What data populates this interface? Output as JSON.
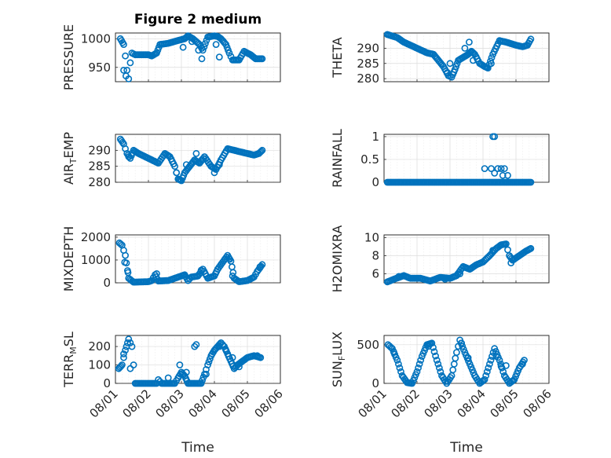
{
  "figure": {
    "title": "Figure 2 medium",
    "xlabel": "Time"
  },
  "colors": {
    "marker": "#0072BD",
    "axis": "#262626",
    "grid": "#dcdcdc"
  },
  "x_ticks": [
    "08/01",
    "08/02",
    "08/03",
    "08/04",
    "08/05",
    "08/06"
  ],
  "chart_data": [
    {
      "type": "scatter",
      "panel": "PRESSURE",
      "ylabel": "PRESSURE",
      "ylim": [
        925,
        1010
      ],
      "yticks": [
        "950",
        "1000"
      ],
      "yvals": [
        950,
        1000
      ],
      "segments": [
        [
          0.15,
          1000
        ],
        [
          0.25,
          990
        ],
        [
          0.3,
          970
        ],
        [
          0.35,
          945
        ],
        [
          0.4,
          930
        ],
        [
          0.45,
          958
        ],
        [
          0.5,
          975
        ],
        [
          0.6,
          972
        ],
        [
          1.0,
          972
        ],
        [
          1.1,
          970
        ],
        [
          1.25,
          975
        ],
        [
          1.35,
          990
        ],
        [
          1.6,
          992
        ],
        [
          1.9,
          997
        ],
        [
          2.1,
          1000
        ],
        [
          2.2,
          1005
        ],
        [
          2.35,
          1000
        ],
        [
          2.55,
          990
        ],
        [
          2.65,
          980
        ],
        [
          2.8,
          1003
        ],
        [
          3.0,
          1005
        ],
        [
          3.1,
          1004
        ],
        [
          3.2,
          1000
        ],
        [
          3.35,
          990
        ],
        [
          3.45,
          975
        ],
        [
          3.55,
          963
        ],
        [
          3.75,
          963
        ],
        [
          3.9,
          978
        ],
        [
          4.1,
          972
        ],
        [
          4.25,
          965
        ],
        [
          4.45,
          965
        ]
      ],
      "points": [
        [
          0.25,
          945
        ],
        [
          0.32,
          935
        ],
        [
          2.05,
          985
        ],
        [
          2.32,
          995
        ],
        [
          2.52,
          980
        ],
        [
          2.62,
          965
        ],
        [
          3.05,
          990
        ],
        [
          3.15,
          968
        ]
      ]
    },
    {
      "type": "scatter",
      "panel": "THETA",
      "ylabel": "THETA",
      "ylim": [
        279,
        295
      ],
      "yticks": [
        "280",
        "285",
        "290"
      ],
      "yvals": [
        280,
        285,
        290
      ],
      "segments": [
        [
          0.1,
          294.5
        ],
        [
          0.4,
          293.5
        ],
        [
          0.6,
          292
        ],
        [
          1.0,
          290
        ],
        [
          1.3,
          288.5
        ],
        [
          1.5,
          288
        ],
        [
          1.65,
          286
        ],
        [
          1.8,
          284
        ],
        [
          1.95,
          281
        ],
        [
          2.05,
          280.5
        ],
        [
          2.15,
          283
        ],
        [
          2.25,
          286
        ],
        [
          2.4,
          287
        ],
        [
          2.55,
          288
        ],
        [
          2.65,
          289
        ],
        [
          2.75,
          288
        ],
        [
          2.9,
          285
        ],
        [
          3.05,
          284
        ],
        [
          3.15,
          283.5
        ],
        [
          3.3,
          288
        ],
        [
          3.5,
          292.5
        ],
        [
          3.7,
          292
        ],
        [
          4.0,
          291
        ],
        [
          4.2,
          290.5
        ],
        [
          4.35,
          291
        ],
        [
          4.45,
          293
        ]
      ],
      "points": [
        [
          1.92,
          282
        ],
        [
          2.0,
          285
        ],
        [
          2.45,
          290
        ],
        [
          2.58,
          292
        ],
        [
          2.7,
          286
        ],
        [
          3.25,
          285
        ]
      ]
    },
    {
      "type": "scatter",
      "panel": "AIR_TEMP",
      "ylabel": "AIR",
      "ylabel_sub": "T",
      "ylabel_tail": "EMP",
      "ylim": [
        280,
        295
      ],
      "yticks": [
        "280",
        "285",
        "290"
      ],
      "yvals": [
        280,
        285,
        290
      ],
      "segments": [
        [
          0.15,
          293.5
        ],
        [
          0.25,
          292
        ],
        [
          0.35,
          289
        ],
        [
          0.45,
          287.5
        ],
        [
          0.55,
          290
        ],
        [
          0.7,
          289
        ],
        [
          1.0,
          287.5
        ],
        [
          1.3,
          286
        ],
        [
          1.5,
          289
        ],
        [
          1.65,
          288
        ],
        [
          1.8,
          285
        ],
        [
          1.9,
          281
        ],
        [
          2.0,
          280.5
        ],
        [
          2.1,
          283
        ],
        [
          2.25,
          285
        ],
        [
          2.4,
          287
        ],
        [
          2.55,
          286
        ],
        [
          2.7,
          288
        ],
        [
          2.9,
          285
        ],
        [
          3.05,
          284
        ],
        [
          3.2,
          287
        ],
        [
          3.4,
          290.5
        ],
        [
          3.6,
          290
        ],
        [
          3.8,
          289.5
        ],
        [
          4.0,
          289
        ],
        [
          4.2,
          288.5
        ],
        [
          4.35,
          289
        ],
        [
          4.45,
          290
        ]
      ],
      "points": [
        [
          0.4,
          288
        ],
        [
          1.85,
          283
        ],
        [
          2.15,
          285.5
        ],
        [
          2.45,
          289
        ],
        [
          2.62,
          287
        ],
        [
          3.0,
          283
        ],
        [
          3.15,
          285.5
        ]
      ]
    },
    {
      "type": "scatter",
      "panel": "RAINFALL",
      "ylabel": "RAINFALL",
      "ylim": [
        0,
        1.05
      ],
      "yticks": [
        "0",
        "0.5",
        "1"
      ],
      "yvals": [
        0,
        0.5,
        1
      ],
      "segments": [
        [
          0.1,
          0
        ],
        [
          4.45,
          0
        ]
      ],
      "points": [
        [
          3.05,
          0.3
        ],
        [
          3.25,
          0.3
        ],
        [
          3.3,
          1
        ],
        [
          3.35,
          1
        ],
        [
          3.45,
          0.3
        ],
        [
          3.55,
          0.3
        ],
        [
          3.65,
          0.3
        ],
        [
          3.75,
          0.15
        ],
        [
          3.35,
          0.2
        ],
        [
          3.6,
          0.15
        ]
      ]
    },
    {
      "type": "scatter",
      "panel": "MIXDEPTH",
      "ylabel": "MIXDEPTH",
      "ylim": [
        0,
        2100
      ],
      "yticks": [
        "0",
        "1000",
        "2000"
      ],
      "yvals": [
        0,
        1000,
        2000
      ],
      "segments": [
        [
          0.12,
          1750
        ],
        [
          0.2,
          1650
        ],
        [
          0.3,
          1200
        ],
        [
          0.4,
          200
        ],
        [
          0.55,
          30
        ],
        [
          1.0,
          50
        ],
        [
          1.1,
          100
        ],
        [
          1.2,
          350
        ],
        [
          1.3,
          80
        ],
        [
          1.6,
          100
        ],
        [
          1.8,
          200
        ],
        [
          2.0,
          300
        ],
        [
          2.1,
          350
        ],
        [
          2.2,
          100
        ],
        [
          2.3,
          250
        ],
        [
          2.5,
          300
        ],
        [
          2.65,
          600
        ],
        [
          2.8,
          200
        ],
        [
          3.0,
          300
        ],
        [
          3.1,
          600
        ],
        [
          3.25,
          900
        ],
        [
          3.4,
          1200
        ],
        [
          3.5,
          950
        ],
        [
          3.6,
          200
        ],
        [
          3.75,
          50
        ],
        [
          4.0,
          100
        ],
        [
          4.2,
          250
        ],
        [
          4.3,
          500
        ],
        [
          4.45,
          800
        ]
      ],
      "points": [
        [
          0.28,
          900
        ],
        [
          0.38,
          450
        ],
        [
          1.25,
          400
        ],
        [
          2.6,
          550
        ],
        [
          3.45,
          1050
        ],
        [
          3.55,
          300
        ],
        [
          4.38,
          700
        ]
      ]
    },
    {
      "type": "scatter",
      "panel": "H2OMIXRA",
      "ylabel": "H2OMIXRA",
      "ylim": [
        5,
        10.3
      ],
      "yticks": [
        "6",
        "8",
        "10"
      ],
      "yvals": [
        6,
        8,
        10
      ],
      "segments": [
        [
          0.1,
          5.1
        ],
        [
          0.3,
          5.4
        ],
        [
          0.6,
          5.8
        ],
        [
          0.8,
          5.5
        ],
        [
          1.1,
          5.5
        ],
        [
          1.4,
          5.2
        ],
        [
          1.7,
          5.6
        ],
        [
          2.0,
          5.5
        ],
        [
          2.2,
          5.8
        ],
        [
          2.4,
          6.8
        ],
        [
          2.6,
          6.5
        ],
        [
          2.8,
          7.0
        ],
        [
          3.0,
          7.3
        ],
        [
          3.2,
          8.0
        ],
        [
          3.4,
          8.8
        ],
        [
          3.55,
          9.2
        ],
        [
          3.7,
          9.3
        ],
        [
          3.8,
          8.0
        ],
        [
          3.9,
          7.5
        ],
        [
          4.1,
          8.0
        ],
        [
          4.3,
          8.5
        ],
        [
          4.45,
          8.8
        ]
      ],
      "points": [
        [
          0.45,
          5.7
        ],
        [
          1.85,
          5.4
        ],
        [
          2.3,
          6.0
        ],
        [
          3.3,
          8.6
        ],
        [
          3.85,
          7.2
        ]
      ]
    },
    {
      "type": "scatter",
      "panel": "TERR_MSL",
      "ylabel": "TERR",
      "ylabel_sub": "M",
      "ylabel_tail": "SL",
      "ylim": [
        0,
        260
      ],
      "yticks": [
        "0",
        "100",
        "200"
      ],
      "yvals": [
        0,
        100,
        200
      ],
      "segments": [
        [
          0.1,
          80
        ],
        [
          0.2,
          100
        ],
        [
          0.3,
          180
        ],
        [
          0.4,
          240
        ],
        [
          0.5,
          200
        ],
        [
          0.6,
          0
        ],
        [
          1.25,
          0
        ],
        [
          1.3,
          20
        ],
        [
          1.4,
          0
        ],
        [
          1.8,
          0
        ],
        [
          1.9,
          30
        ],
        [
          2.0,
          60
        ],
        [
          2.1,
          40
        ],
        [
          2.2,
          0
        ],
        [
          2.6,
          0
        ],
        [
          2.7,
          50
        ],
        [
          2.8,
          100
        ],
        [
          2.9,
          150
        ],
        [
          3.0,
          180
        ],
        [
          3.1,
          200
        ],
        [
          3.2,
          220
        ],
        [
          3.3,
          200
        ],
        [
          3.4,
          160
        ],
        [
          3.5,
          120
        ],
        [
          3.6,
          80
        ],
        [
          3.7,
          100
        ],
        [
          3.85,
          120
        ],
        [
          4.0,
          140
        ],
        [
          4.2,
          150
        ],
        [
          4.4,
          140
        ]
      ],
      "points": [
        [
          0.25,
          160
        ],
        [
          0.45,
          80
        ],
        [
          1.6,
          30
        ],
        [
          1.95,
          100
        ],
        [
          2.15,
          60
        ],
        [
          2.4,
          200
        ],
        [
          2.45,
          210
        ],
        [
          2.75,
          50
        ],
        [
          3.15,
          200
        ],
        [
          3.35,
          180
        ],
        [
          3.55,
          140
        ],
        [
          3.75,
          90
        ],
        [
          4.3,
          150
        ]
      ]
    },
    {
      "type": "scatter",
      "panel": "SUN_FLUX",
      "ylabel": "SUN",
      "ylabel_sub": "F",
      "ylabel_tail": "LUX",
      "ylim": [
        0,
        620
      ],
      "yticks": [
        "0",
        "500"
      ],
      "yvals": [
        0,
        500
      ],
      "segments": [
        [
          0.12,
          500
        ],
        [
          0.25,
          450
        ],
        [
          0.4,
          300
        ],
        [
          0.55,
          100
        ],
        [
          0.7,
          10
        ],
        [
          0.85,
          0
        ],
        [
          1.0,
          150
        ],
        [
          1.15,
          350
        ],
        [
          1.3,
          500
        ],
        [
          1.45,
          520
        ],
        [
          1.6,
          300
        ],
        [
          1.75,
          100
        ],
        [
          1.9,
          0
        ],
        [
          2.05,
          100
        ],
        [
          2.2,
          400
        ],
        [
          2.3,
          560
        ],
        [
          2.45,
          400
        ],
        [
          2.6,
          250
        ],
        [
          2.75,
          100
        ],
        [
          2.9,
          0
        ],
        [
          3.05,
          50
        ],
        [
          3.2,
          250
        ],
        [
          3.35,
          450
        ],
        [
          3.5,
          300
        ],
        [
          3.65,
          100
        ],
        [
          3.8,
          0
        ],
        [
          3.95,
          50
        ],
        [
          4.1,
          200
        ],
        [
          4.25,
          300
        ]
      ],
      "points": [
        [
          0.3,
          400
        ],
        [
          1.35,
          480
        ],
        [
          2.35,
          520
        ],
        [
          2.55,
          330
        ],
        [
          3.4,
          350
        ],
        [
          3.55,
          220
        ],
        [
          3.7,
          230
        ],
        [
          4.2,
          250
        ]
      ]
    }
  ]
}
